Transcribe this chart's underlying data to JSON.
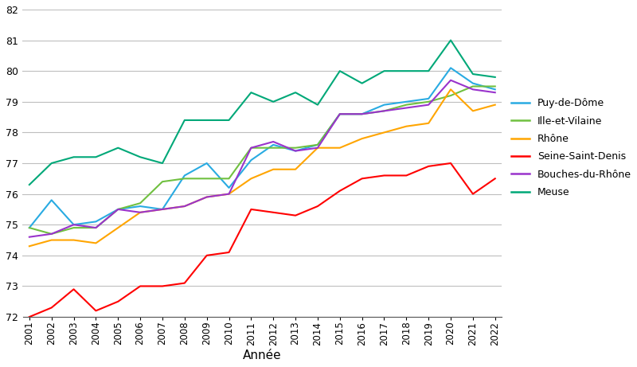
{
  "xlabel": "Année",
  "years": [
    2001,
    2002,
    2003,
    2004,
    2005,
    2006,
    2007,
    2008,
    2009,
    2010,
    2011,
    2012,
    2013,
    2014,
    2015,
    2016,
    2017,
    2018,
    2019,
    2020,
    2021,
    2022
  ],
  "series": {
    "Puy-de-Dôme": [
      74.9,
      75.8,
      75.0,
      75.1,
      75.5,
      75.6,
      75.5,
      76.6,
      77.0,
      76.2,
      77.1,
      77.6,
      77.4,
      77.6,
      78.6,
      78.6,
      78.9,
      79.0,
      79.1,
      80.1,
      79.6,
      79.4
    ],
    "Ille-et-Vilaine": [
      74.9,
      74.7,
      74.9,
      74.9,
      75.5,
      75.7,
      76.4,
      76.5,
      76.5,
      76.5,
      77.5,
      77.5,
      77.5,
      77.6,
      78.6,
      78.6,
      78.7,
      78.9,
      79.0,
      79.2,
      79.5,
      79.5
    ],
    "Rhône": [
      74.3,
      74.5,
      74.5,
      74.4,
      74.9,
      75.4,
      75.5,
      75.6,
      75.9,
      76.0,
      76.5,
      76.8,
      76.8,
      77.5,
      77.5,
      77.8,
      78.0,
      78.2,
      78.3,
      79.4,
      78.7,
      78.9
    ],
    "Seine-Saint-Denis": [
      72.0,
      72.3,
      72.9,
      72.2,
      72.5,
      73.0,
      73.0,
      73.1,
      74.0,
      74.1,
      75.5,
      75.4,
      75.3,
      75.6,
      76.1,
      76.5,
      76.6,
      76.6,
      76.9,
      77.0,
      76.0,
      76.5
    ],
    "Bouches-du-Rhône": [
      74.6,
      74.7,
      75.0,
      74.9,
      75.5,
      75.4,
      75.5,
      75.6,
      75.9,
      76.0,
      77.5,
      77.7,
      77.4,
      77.5,
      78.6,
      78.6,
      78.7,
      78.8,
      78.9,
      79.7,
      79.4,
      79.3
    ],
    "Meuse": [
      76.3,
      77.0,
      77.2,
      77.2,
      77.5,
      77.2,
      77.0,
      78.4,
      78.4,
      78.4,
      79.3,
      79.0,
      79.3,
      78.9,
      80.0,
      79.6,
      80.0,
      80.0,
      80.0,
      81.0,
      79.9,
      79.8
    ]
  },
  "colors": {
    "Puy-de-Dôme": "#29ABE2",
    "Ille-et-Vilaine": "#70C040",
    "Rhône": "#FFA500",
    "Seine-Saint-Denis": "#FF0000",
    "Bouches-du-Rhône": "#9933CC",
    "Meuse": "#00A878"
  },
  "ylim": [
    72,
    82
  ],
  "yticks": [
    72,
    73,
    74,
    75,
    76,
    77,
    78,
    79,
    80,
    81,
    82
  ],
  "bg_color": "#FFFFFF",
  "grid_color": "#BEBEBE"
}
